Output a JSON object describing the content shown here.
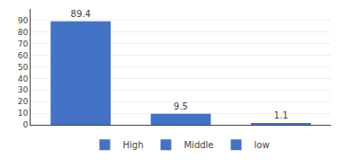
{
  "chart_data": {
    "type": "bar",
    "categories": [
      "High",
      "Middle",
      "low"
    ],
    "values": [
      89.4,
      9.5,
      1.1
    ],
    "color": "#4472C4",
    "ylim": [
      0,
      100
    ],
    "yticks": [
      0,
      10,
      20,
      30,
      40,
      50,
      60,
      70,
      80,
      90
    ],
    "grid": true,
    "legend": "bottom",
    "data_labels": true,
    "tick_labels": "y"
  }
}
